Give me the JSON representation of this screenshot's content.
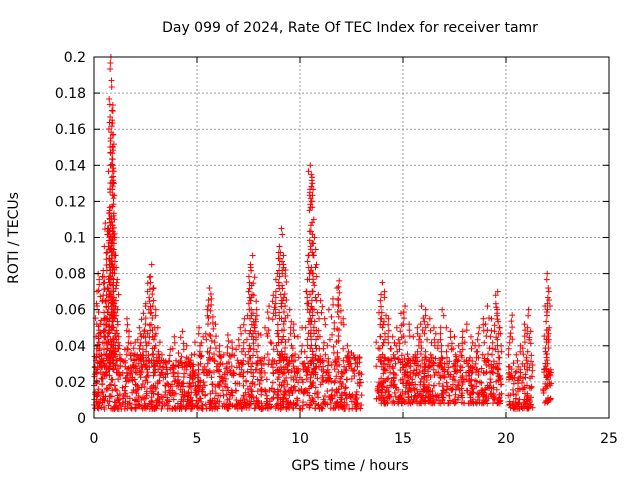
{
  "chart_data": {
    "type": "scatter",
    "title": "Day 099 of 2024, Rate Of TEC Index for receiver tamr",
    "xlabel": "GPS time / hours",
    "ylabel": "ROTI / TECUs",
    "xlim": [
      0,
      25
    ],
    "ylim": [
      0,
      0.2
    ],
    "x_ticks": [
      "0",
      "5",
      "10",
      "15",
      "20",
      "25"
    ],
    "y_ticks": [
      "0",
      "0.02",
      "0.04",
      "0.06",
      "0.08",
      "0.1",
      "0.12",
      "0.14",
      "0.16",
      "0.18",
      "0.2"
    ],
    "grid": true,
    "marker": "+",
    "color": "#ff0000",
    "series": [
      {
        "points": [
          [
            0.0,
            0.018
          ],
          [
            0.05,
            0.028
          ],
          [
            0.1,
            0.045
          ],
          [
            0.15,
            0.062
          ],
          [
            0.2,
            0.08
          ],
          [
            0.25,
            0.074
          ],
          [
            0.3,
            0.052
          ],
          [
            0.35,
            0.035
          ],
          [
            0.4,
            0.022
          ],
          [
            0.45,
            0.068
          ],
          [
            0.5,
            0.095
          ],
          [
            0.55,
            0.108
          ],
          [
            0.6,
            0.088
          ],
          [
            0.65,
            0.072
          ],
          [
            0.7,
            0.105
          ],
          [
            0.75,
            0.115
          ],
          [
            0.8,
            0.14
          ],
          [
            0.82,
            0.2
          ],
          [
            0.85,
            0.187
          ],
          [
            0.88,
            0.165
          ],
          [
            0.9,
            0.15
          ],
          [
            0.92,
            0.13
          ],
          [
            0.95,
            0.112
          ],
          [
            1.0,
            0.1
          ],
          [
            1.05,
            0.09
          ],
          [
            1.1,
            0.075
          ],
          [
            1.15,
            0.06
          ],
          [
            1.2,
            0.045
          ],
          [
            1.3,
            0.032
          ],
          [
            1.4,
            0.025
          ],
          [
            1.5,
            0.038
          ],
          [
            1.6,
            0.055
          ],
          [
            1.7,
            0.048
          ],
          [
            1.8,
            0.036
          ],
          [
            1.9,
            0.028
          ],
          [
            2.0,
            0.042
          ],
          [
            2.1,
            0.035
          ],
          [
            2.2,
            0.05
          ],
          [
            2.3,
            0.045
          ],
          [
            2.4,
            0.058
          ],
          [
            2.5,
            0.062
          ],
          [
            2.6,
            0.07
          ],
          [
            2.7,
            0.078
          ],
          [
            2.8,
            0.085
          ],
          [
            2.9,
            0.072
          ],
          [
            3.0,
            0.06
          ],
          [
            3.1,
            0.05
          ],
          [
            3.2,
            0.042
          ],
          [
            3.3,
            0.035
          ],
          [
            3.5,
            0.03
          ],
          [
            3.7,
            0.038
          ],
          [
            3.9,
            0.045
          ],
          [
            4.1,
            0.036
          ],
          [
            4.3,
            0.048
          ],
          [
            4.5,
            0.04
          ],
          [
            4.7,
            0.032
          ],
          [
            4.9,
            0.042
          ],
          [
            5.1,
            0.05
          ],
          [
            5.3,
            0.045
          ],
          [
            5.5,
            0.06
          ],
          [
            5.6,
            0.072
          ],
          [
            5.7,
            0.066
          ],
          [
            5.9,
            0.052
          ],
          [
            6.1,
            0.04
          ],
          [
            6.3,
            0.035
          ],
          [
            6.5,
            0.046
          ],
          [
            6.7,
            0.042
          ],
          [
            6.9,
            0.038
          ],
          [
            7.1,
            0.05
          ],
          [
            7.3,
            0.055
          ],
          [
            7.5,
            0.07
          ],
          [
            7.6,
            0.085
          ],
          [
            7.7,
            0.09
          ],
          [
            7.8,
            0.078
          ],
          [
            7.9,
            0.06
          ],
          [
            8.1,
            0.046
          ],
          [
            8.3,
            0.05
          ],
          [
            8.5,
            0.062
          ],
          [
            8.7,
            0.068
          ],
          [
            8.9,
            0.08
          ],
          [
            9.0,
            0.095
          ],
          [
            9.1,
            0.105
          ],
          [
            9.2,
            0.09
          ],
          [
            9.3,
            0.082
          ],
          [
            9.5,
            0.06
          ],
          [
            9.7,
            0.052
          ],
          [
            9.9,
            0.045
          ],
          [
            10.1,
            0.05
          ],
          [
            10.3,
            0.07
          ],
          [
            10.4,
            0.09
          ],
          [
            10.5,
            0.14
          ],
          [
            10.55,
            0.135
          ],
          [
            10.6,
            0.13
          ],
          [
            10.7,
            0.1
          ],
          [
            10.8,
            0.085
          ],
          [
            11.0,
            0.065
          ],
          [
            11.2,
            0.055
          ],
          [
            11.4,
            0.06
          ],
          [
            11.6,
            0.066
          ],
          [
            11.8,
            0.072
          ],
          [
            11.9,
            0.076
          ],
          [
            12.1,
            0.055
          ],
          [
            12.3,
            0.04
          ],
          [
            12.5,
            0.036
          ],
          [
            12.7,
            0.03
          ],
          [
            12.9,
            0.025
          ],
          [
            13.7,
            0.042
          ],
          [
            13.9,
            0.065
          ],
          [
            14.0,
            0.075
          ],
          [
            14.1,
            0.07
          ],
          [
            14.3,
            0.055
          ],
          [
            14.5,
            0.045
          ],
          [
            14.7,
            0.05
          ],
          [
            14.9,
            0.058
          ],
          [
            15.1,
            0.062
          ],
          [
            15.3,
            0.052
          ],
          [
            15.5,
            0.045
          ],
          [
            15.7,
            0.05
          ],
          [
            15.9,
            0.062
          ],
          [
            16.1,
            0.06
          ],
          [
            16.3,
            0.055
          ],
          [
            16.5,
            0.05
          ],
          [
            16.7,
            0.042
          ],
          [
            16.9,
            0.06
          ],
          [
            17.1,
            0.05
          ],
          [
            17.3,
            0.048
          ],
          [
            17.5,
            0.045
          ],
          [
            17.7,
            0.04
          ],
          [
            17.9,
            0.048
          ],
          [
            18.1,
            0.052
          ],
          [
            18.3,
            0.045
          ],
          [
            18.5,
            0.04
          ],
          [
            18.7,
            0.05
          ],
          [
            18.9,
            0.055
          ],
          [
            19.1,
            0.062
          ],
          [
            19.3,
            0.055
          ],
          [
            19.5,
            0.068
          ],
          [
            19.6,
            0.07
          ],
          [
            19.7,
            0.05
          ],
          [
            20.2,
            0.045
          ],
          [
            20.3,
            0.057
          ],
          [
            20.5,
            0.035
          ],
          [
            20.7,
            0.04
          ],
          [
            20.9,
            0.052
          ],
          [
            21.1,
            0.06
          ],
          [
            21.2,
            0.048
          ],
          [
            21.9,
            0.062
          ],
          [
            22.0,
            0.08
          ],
          [
            22.05,
            0.072
          ],
          [
            22.1,
            0.05
          ]
        ],
        "baseline_segments": [
          [
            0.0,
            13.0,
            0.005,
            0.035
          ],
          [
            13.7,
            19.8,
            0.008,
            0.034
          ],
          [
            20.1,
            21.3,
            0.005,
            0.03
          ],
          [
            21.8,
            22.2,
            0.008,
            0.028
          ]
        ]
      }
    ]
  }
}
